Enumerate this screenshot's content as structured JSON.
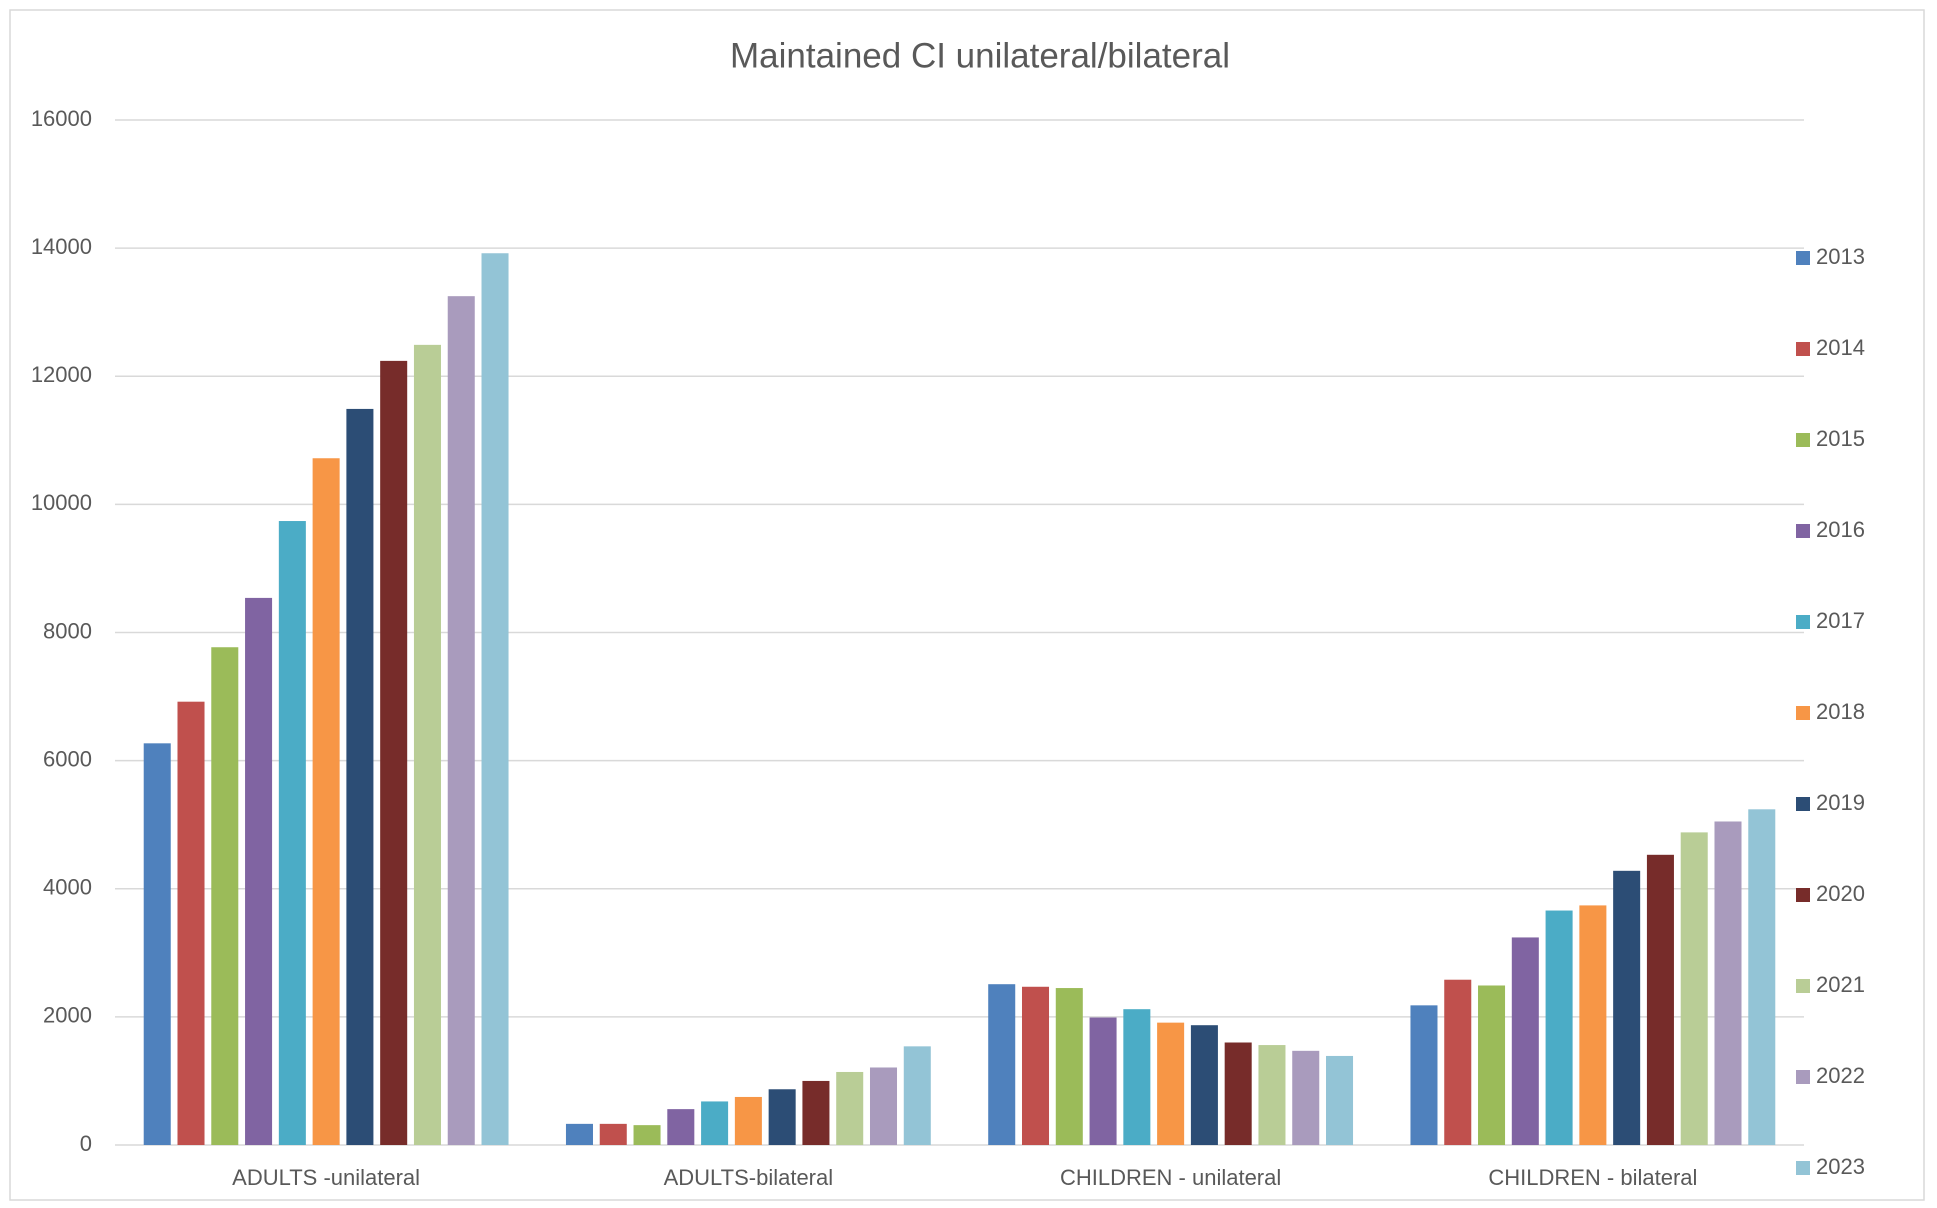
{
  "chart_data": {
    "type": "bar",
    "title": "Maintained CI unilateral/bilateral",
    "categories": [
      "ADULTS -unilateral",
      "ADULTS-bilateral",
      "CHILDREN - unilateral",
      "CHILDREN - bilateral"
    ],
    "series": [
      {
        "name": "2013",
        "color": "#4f81bd",
        "values": [
          6270,
          330,
          2510,
          2180
        ]
      },
      {
        "name": "2014",
        "color": "#c0504d",
        "values": [
          6920,
          330,
          2470,
          2580
        ]
      },
      {
        "name": "2015",
        "color": "#9bbb59",
        "values": [
          7770,
          310,
          2450,
          2490
        ]
      },
      {
        "name": "2016",
        "color": "#8064a2",
        "values": [
          8540,
          560,
          1990,
          3240
        ]
      },
      {
        "name": "2017",
        "color": "#4bacc6",
        "values": [
          9740,
          680,
          2120,
          3660
        ]
      },
      {
        "name": "2018",
        "color": "#f79646",
        "values": [
          10720,
          750,
          1910,
          3740
        ]
      },
      {
        "name": "2019",
        "color": "#2c4d75",
        "values": [
          11490,
          870,
          1870,
          4280
        ]
      },
      {
        "name": "2020",
        "color": "#772c2a",
        "values": [
          12240,
          1000,
          1600,
          4530
        ]
      },
      {
        "name": "2021",
        "color": "#b9cd96",
        "values": [
          12490,
          1140,
          1560,
          4880
        ]
      },
      {
        "name": "2022",
        "color": "#a99bbd",
        "values": [
          13250,
          1210,
          1470,
          5050
        ]
      },
      {
        "name": "2023",
        "color": "#93c4d6",
        "values": [
          13920,
          1540,
          1390,
          5240
        ]
      }
    ],
    "ylim": [
      0,
      16000
    ],
    "yticks": [
      0,
      2000,
      4000,
      6000,
      8000,
      10000,
      12000,
      14000,
      16000
    ],
    "grid": true,
    "legend": "right"
  }
}
